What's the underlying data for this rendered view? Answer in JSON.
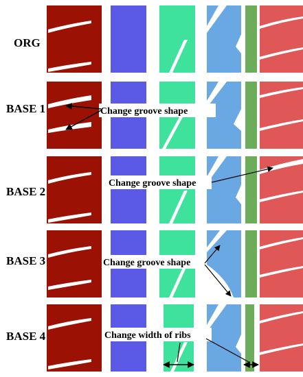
{
  "rows": [
    {
      "label": "ORG"
    },
    {
      "label": "BASE 1"
    },
    {
      "label": "BASE 2"
    },
    {
      "label": "BASE 3"
    },
    {
      "label": "BASE 4"
    }
  ],
  "annotations": {
    "base1": "Change groove shape",
    "base2": "Change groove shape",
    "base3": "Change groove shape",
    "base4": "Change width of ribs"
  },
  "colors": {
    "dark_red": "#9b1204",
    "purple": "#5a5ae6",
    "teal": "#3ee29c",
    "blue": "#6aa8e4",
    "green": "#6cad5a",
    "red": "#e05757",
    "groove": "#ffffff"
  }
}
